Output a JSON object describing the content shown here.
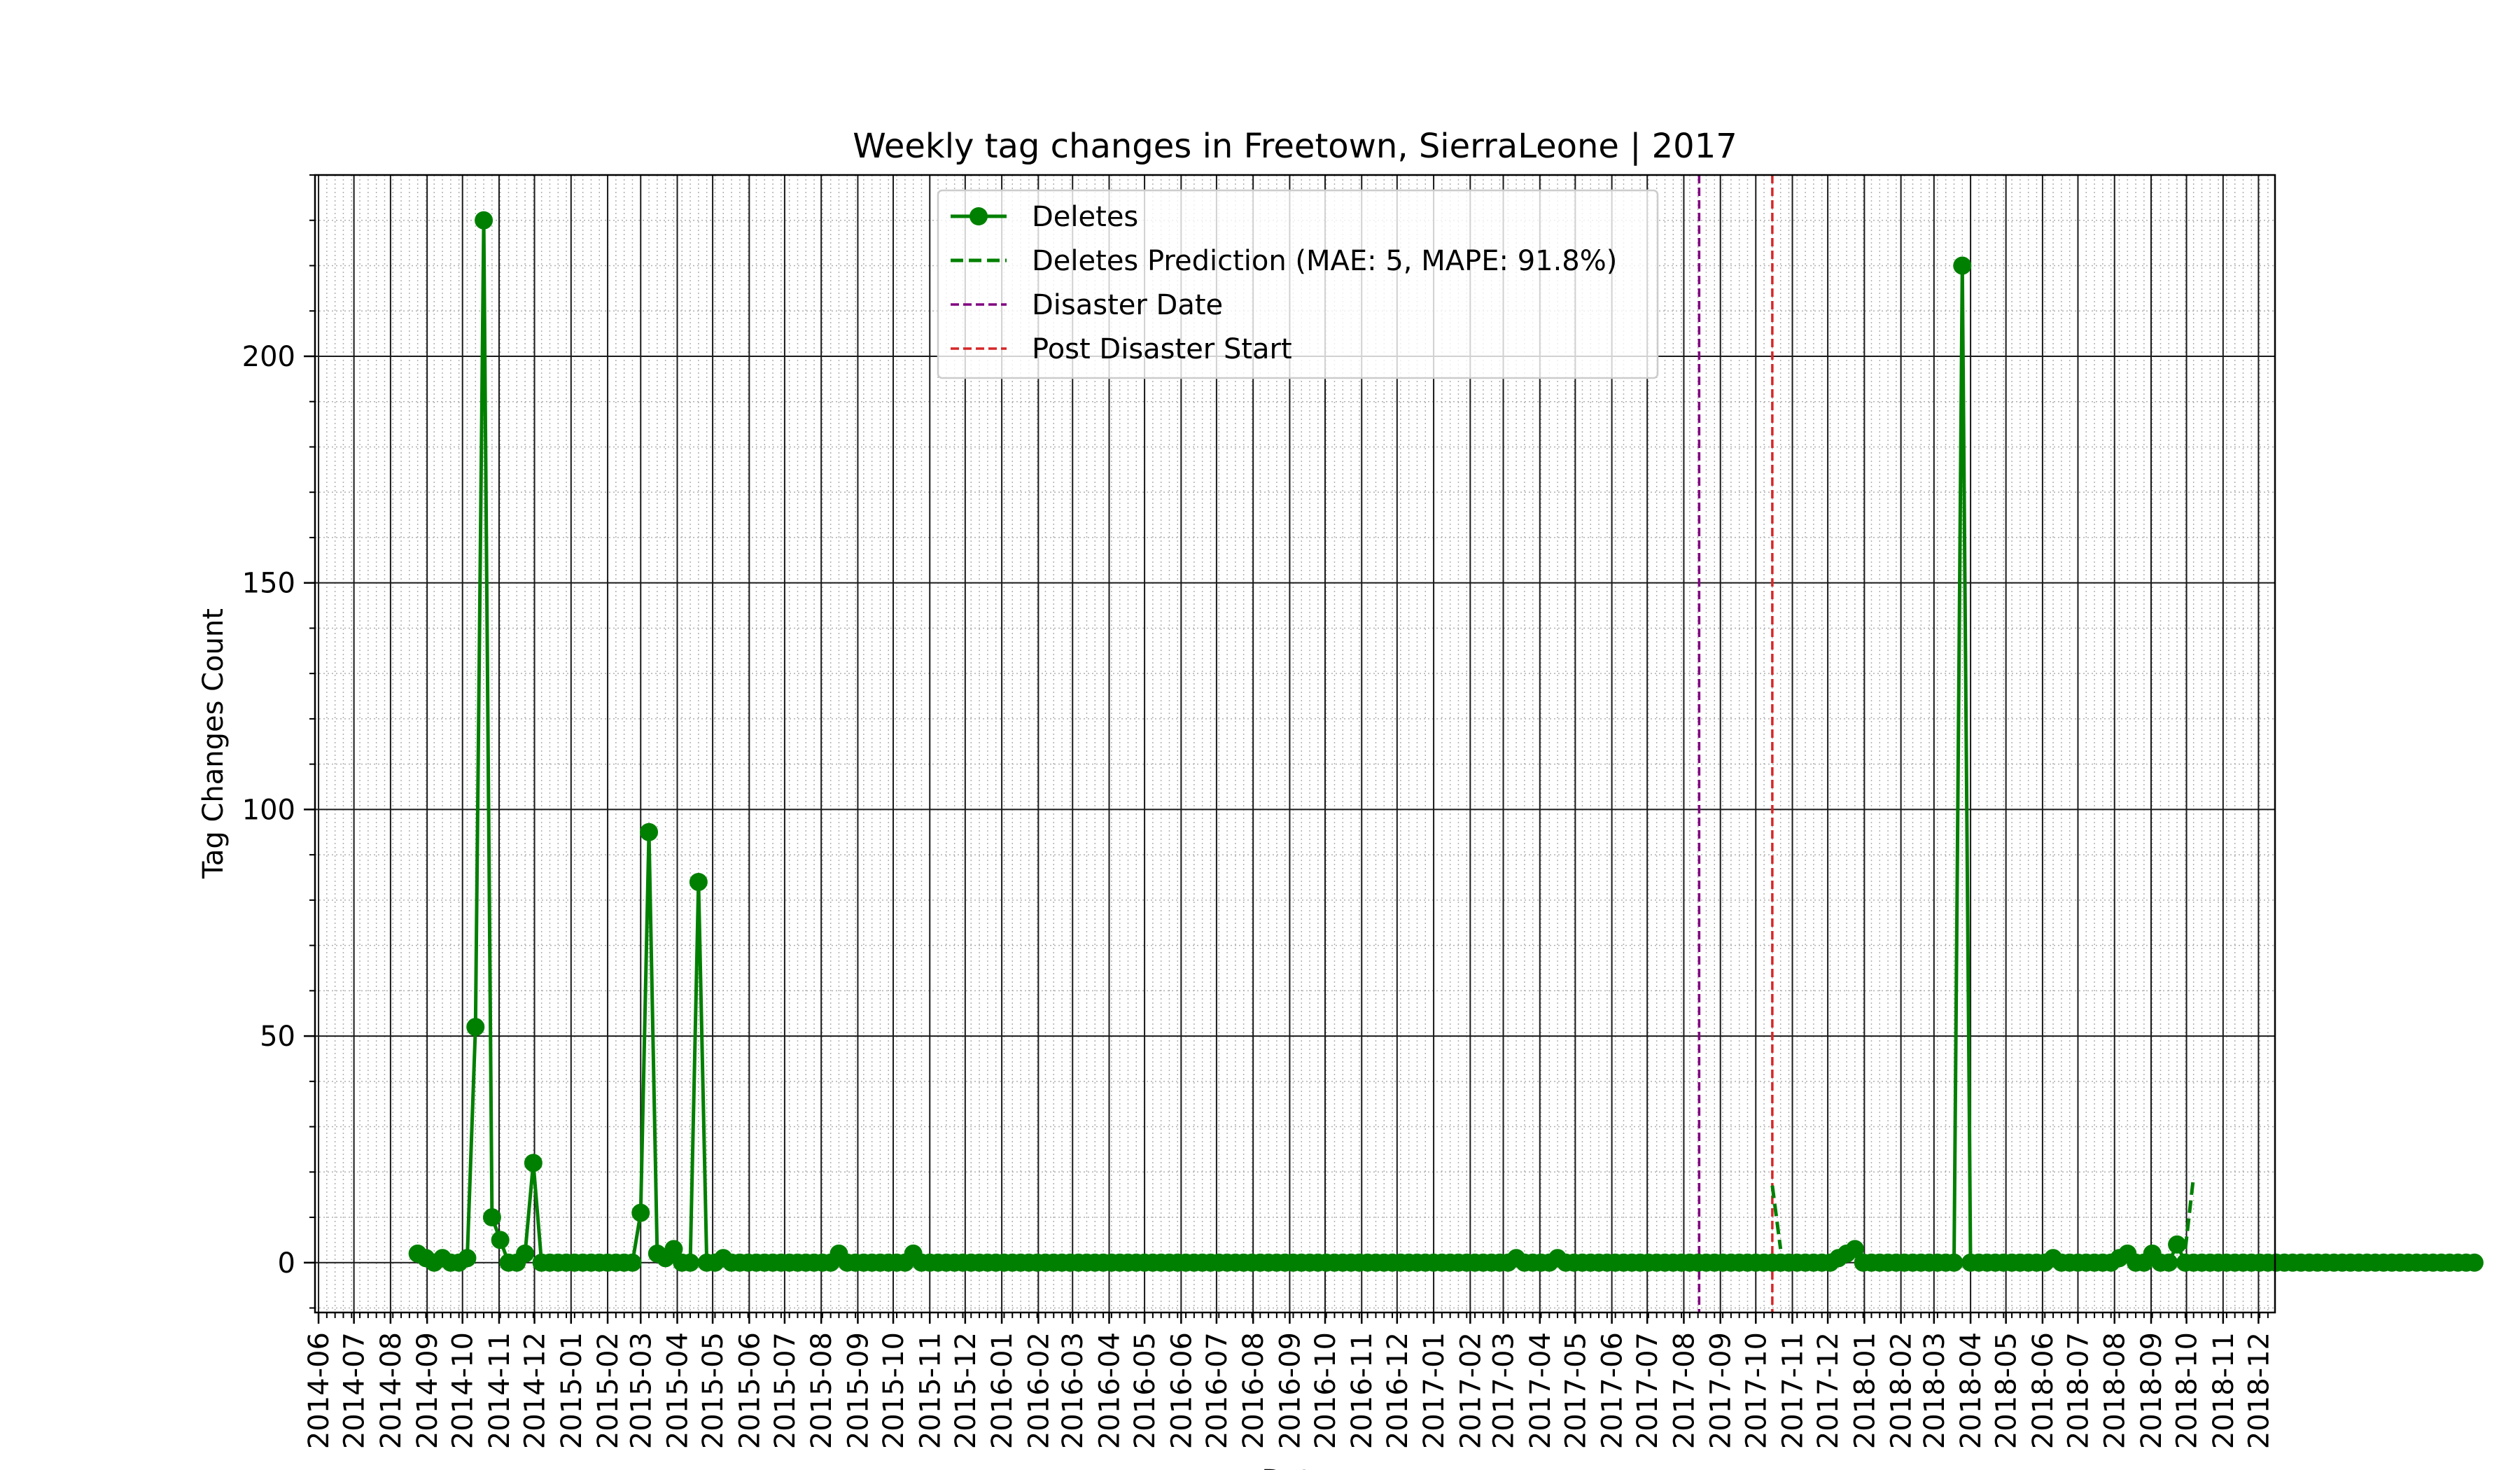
{
  "chart_data": {
    "type": "line",
    "title": "Weekly tag changes in Freetown, SierraLeone | 2017",
    "xlabel": "Date",
    "ylabel": "Tag Changes Count",
    "ylim": [
      -11,
      240
    ],
    "xlim": [
      "2014-05-29",
      "2018-12-15"
    ],
    "y_ticks": [
      0,
      50,
      100,
      150,
      200
    ],
    "x_tick_labels": [
      "2014-06",
      "2014-07",
      "2014-08",
      "2014-09",
      "2014-10",
      "2014-11",
      "2014-12",
      "2015-01",
      "2015-02",
      "2015-03",
      "2015-04",
      "2015-05",
      "2015-06",
      "2015-07",
      "2015-08",
      "2015-09",
      "2015-10",
      "2015-11",
      "2015-12",
      "2016-01",
      "2016-02",
      "2016-03",
      "2016-04",
      "2016-05",
      "2016-06",
      "2016-07",
      "2016-08",
      "2016-09",
      "2016-10",
      "2016-11",
      "2016-12",
      "2017-01",
      "2017-02",
      "2017-03",
      "2017-04",
      "2017-05",
      "2017-06",
      "2017-07",
      "2017-08",
      "2017-09",
      "2017-10",
      "2017-11",
      "2017-12",
      "2018-01",
      "2018-02",
      "2018-03",
      "2018-04",
      "2018-05",
      "2018-06",
      "2018-07",
      "2018-08",
      "2018-09",
      "2018-10",
      "2018-11",
      "2018-12"
    ],
    "grid": true,
    "legend_position": "top-center",
    "series": [
      {
        "name": "Deletes",
        "style": "solid-with-markers",
        "color": "#008000",
        "start_date": "2014-08-24",
        "interval_days": 7,
        "values": [
          2,
          1,
          0,
          1,
          0,
          0,
          1,
          52,
          230,
          10,
          5,
          0,
          0,
          2,
          22,
          0,
          0,
          0,
          0,
          0,
          0,
          0,
          0,
          0,
          0,
          0,
          0,
          11,
          95,
          2,
          1,
          3,
          0,
          0,
          84,
          0,
          0,
          1,
          0,
          0,
          0,
          0,
          0,
          0,
          0,
          0,
          0,
          0,
          0,
          0,
          0,
          2,
          0,
          0,
          0,
          0,
          0,
          0,
          0,
          0,
          2,
          0,
          0,
          0,
          0,
          0,
          0,
          0,
          0,
          0,
          0,
          0,
          0,
          0,
          0,
          0,
          0,
          0,
          0,
          0,
          0,
          0,
          0,
          0,
          0,
          0,
          0,
          0,
          0,
          0,
          0,
          0,
          0,
          0,
          0,
          0,
          0,
          0,
          0,
          0,
          0,
          0,
          0,
          0,
          0,
          0,
          0,
          0,
          0,
          0,
          0,
          0,
          0,
          0,
          0,
          0,
          0,
          0,
          0,
          0,
          0,
          0,
          0,
          0,
          0,
          0,
          0,
          0,
          0,
          0,
          0,
          0,
          0,
          1,
          0,
          0,
          0,
          0,
          1,
          0,
          0,
          0,
          0,
          0,
          0,
          0,
          0,
          0,
          0,
          0,
          0,
          0,
          0,
          0,
          0,
          0,
          0,
          0,
          0,
          0,
          0,
          0,
          0,
          0,
          0,
          0,
          0,
          0,
          0,
          0,
          0,
          0,
          1,
          2,
          3,
          0,
          0,
          0,
          0,
          0,
          0,
          0,
          0,
          0,
          0,
          0,
          0,
          220,
          0,
          0,
          0,
          0,
          0,
          0,
          0,
          0,
          0,
          0,
          1,
          0,
          0,
          0,
          0,
          0,
          0,
          0,
          1,
          2,
          0,
          0,
          2,
          0,
          0,
          4,
          0,
          0,
          0,
          0,
          0,
          0,
          0,
          0,
          0,
          0,
          0,
          0,
          0,
          0,
          0,
          0,
          0,
          0,
          0,
          0,
          0,
          0,
          0,
          0,
          0,
          0,
          0,
          0,
          0,
          0,
          0,
          0,
          0,
          0,
          0,
          0
        ]
      },
      {
        "name": "Deletes Prediction (MAE: 5, MAPE: 91.8%)",
        "style": "dashed",
        "color": "#008000",
        "segments": [
          {
            "x": [
              "2017-10-15",
              "2017-10-22"
            ],
            "y": [
              17,
              3
            ]
          },
          {
            "x": [
              "2018-09-30",
              "2018-10-07"
            ],
            "y": [
              3,
              19
            ]
          }
        ]
      }
    ],
    "vertical_lines": [
      {
        "name": "Disaster Date",
        "date": "2017-08-14",
        "color": "#800080",
        "style": "dashed"
      },
      {
        "name": "Post Disaster Start",
        "date": "2017-10-15",
        "color": "#d62728",
        "style": "dashed"
      }
    ]
  }
}
